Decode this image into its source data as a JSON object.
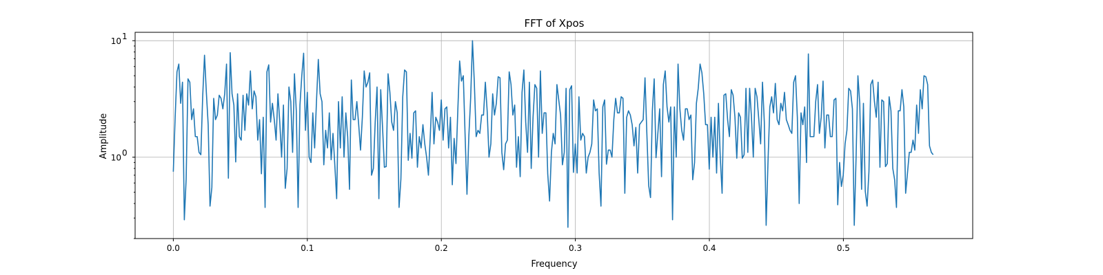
{
  "chart_data": {
    "type": "line",
    "title": "FFT of Xpos",
    "xlabel": "Frequency",
    "ylabel": "Amplitude",
    "yscale": "log",
    "grid": true,
    "xlim": [
      -0.0285,
      0.5965
    ],
    "ylim": [
      0.2,
      11.8
    ],
    "xticks": [
      {
        "value": 0.0,
        "label": "0.0"
      },
      {
        "value": 0.1,
        "label": "0.1"
      },
      {
        "value": 0.2,
        "label": "0.2"
      },
      {
        "value": 0.3,
        "label": "0.3"
      },
      {
        "value": 0.4,
        "label": "0.4"
      },
      {
        "value": 0.5,
        "label": "0.5"
      }
    ],
    "yticks": [
      {
        "value": 1,
        "base": "10",
        "exp": "0"
      },
      {
        "value": 10,
        "base": "10",
        "exp": "1"
      }
    ],
    "series": [
      {
        "color": "#1f77b4",
        "x_start": 0.0,
        "x_end": 0.567,
        "values": [
          0.75,
          2.2,
          5.4,
          6.3,
          2.9,
          4.4,
          0.29,
          0.65,
          4.7,
          4.4,
          2.1,
          2.6,
          1.5,
          1.5,
          1.1,
          1.05,
          3.3,
          7.5,
          3.6,
          1.9,
          0.38,
          0.55,
          3.2,
          2.1,
          2.3,
          3.4,
          3.2,
          2.6,
          3.5,
          6.3,
          0.66,
          7.9,
          3.5,
          2.8,
          0.91,
          3.5,
          1.5,
          1.4,
          3.4,
          1.7,
          3.5,
          2.8,
          5.5,
          2.6,
          3.7,
          3.3,
          1.4,
          2.1,
          0.72,
          2.2,
          0.37,
          5.4,
          6.2,
          2.0,
          2.9,
          2.1,
          1.4,
          3.5,
          2.0,
          1.0,
          2.8,
          0.54,
          0.8,
          4.0,
          3.0,
          1.1,
          5.2,
          2.5,
          0.37,
          2.8,
          5.0,
          7.8,
          1.7,
          3.6,
          1.0,
          0.9,
          2.4,
          1.2,
          3.0,
          6.9,
          3.5,
          3.0,
          0.86,
          1.7,
          1.2,
          2.4,
          0.95,
          1.6,
          0.85,
          0.44,
          3.0,
          1.2,
          3.3,
          1.0,
          2.4,
          1.5,
          0.53,
          4.6,
          2.1,
          2.1,
          3.0,
          1.9,
          1.15,
          2.2,
          5.5,
          4.0,
          4.4,
          5.3,
          0.7,
          0.8,
          2.0,
          4.0,
          0.44,
          3.8,
          1.8,
          0.82,
          0.83,
          5.2,
          3.6,
          2.0,
          1.7,
          3.0,
          2.4,
          0.37,
          0.65,
          3.3,
          5.6,
          5.4,
          0.94,
          1.6,
          0.98,
          2.4,
          2.5,
          0.82,
          1.5,
          1.2,
          1.9,
          1.3,
          1.0,
          0.7,
          1.5,
          3.6,
          1.3,
          2.2,
          2.0,
          1.7,
          3.1,
          1.4,
          2.6,
          2.7,
          1.2,
          2.2,
          0.58,
          1.45,
          0.88,
          2.5,
          6.7,
          4.5,
          5.0,
          1.5,
          0.48,
          1.5,
          3.2,
          10.0,
          4.4,
          1.5,
          1.7,
          1.6,
          2.3,
          2.3,
          4.4,
          2.5,
          1.0,
          1.3,
          3.5,
          2.3,
          2.9,
          4.9,
          4.8,
          1.1,
          0.78,
          1.3,
          1.4,
          5.4,
          4.2,
          2.3,
          2.8,
          0.82,
          1.5,
          0.68,
          3.6,
          5.6,
          2.0,
          1.1,
          4.4,
          0.8,
          2.2,
          4.2,
          3.9,
          1.0,
          5.5,
          1.6,
          2.4,
          2.4,
          0.72,
          0.42,
          1.1,
          1.6,
          1.3,
          4.2,
          3.1,
          2.3,
          0.86,
          1.1,
          3.9,
          0.25,
          3.8,
          4.1,
          0.74,
          1.3,
          0.73,
          3.3,
          1.4,
          1.6,
          1.5,
          0.73,
          1.0,
          1.1,
          1.3,
          3.1,
          2.5,
          2.6,
          0.73,
          0.38,
          2.7,
          3.1,
          0.87,
          1.15,
          1.15,
          1.0,
          2.1,
          3.2,
          2.4,
          2.4,
          3.3,
          3.2,
          0.49,
          2.2,
          2.5,
          2.3,
          1.9,
          1.25,
          1.8,
          0.73,
          1.9,
          2.0,
          2.1,
          4.8,
          1.6,
          0.57,
          0.45,
          2.5,
          4.7,
          0.99,
          1.6,
          2.6,
          0.68,
          4.2,
          5.5,
          2.7,
          2.0,
          2.7,
          0.29,
          2.7,
          1.0,
          6.3,
          2.6,
          1.7,
          1.4,
          2.6,
          2.6,
          2.1,
          2.3,
          0.64,
          0.9,
          2.9,
          3.9,
          6.3,
          5.3,
          3.5,
          1.9,
          1.9,
          0.79,
          2.2,
          1.0,
          2.2,
          0.73,
          2.9,
          1.0,
          0.49,
          3.4,
          3.5,
          2.1,
          1.5,
          3.8,
          3.4,
          2.2,
          0.98,
          2.4,
          2.2,
          0.98,
          1.05,
          3.9,
          1.1,
          3.9,
          2.2,
          1.0,
          3.9,
          3.3,
          2.1,
          1.3,
          4.4,
          2.0,
          0.26,
          0.9,
          2.7,
          3.3,
          2.4,
          4.3,
          2.1,
          1.9,
          2.9,
          2.5,
          3.6,
          2.1,
          1.9,
          1.7,
          1.6,
          4.4,
          5.0,
          2.2,
          0.4,
          2.4,
          1.9,
          2.7,
          0.9,
          7.7,
          1.5,
          1.5,
          1.5,
          3.0,
          4.2,
          1.6,
          2.2,
          4.5,
          1.2,
          2.3,
          2.3,
          1.5,
          1.5,
          3.1,
          3.2,
          0.39,
          0.9,
          0.56,
          0.7,
          1.3,
          1.7,
          3.9,
          3.7,
          2.6,
          0.26,
          1.0,
          5.0,
          2.9,
          0.53,
          2.9,
          0.51,
          0.38,
          0.75,
          4.2,
          4.6,
          3.0,
          2.2,
          4.4,
          0.82,
          3.1,
          3.0,
          0.83,
          0.88,
          3.3,
          2.5,
          0.8,
          0.64,
          0.37,
          2.5,
          2.5,
          3.8,
          2.7,
          0.49,
          0.73,
          1.1,
          1.1,
          1.4,
          1.15,
          2.8,
          1.6,
          3.8,
          2.6,
          5.0,
          4.9,
          4.2,
          1.25,
          1.1,
          1.05
        ]
      }
    ]
  }
}
